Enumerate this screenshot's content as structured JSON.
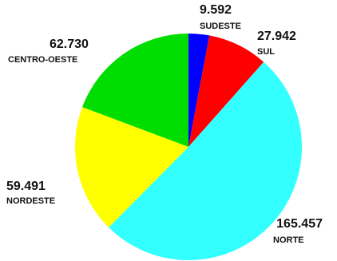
{
  "chart_data": {
    "type": "pie",
    "categories": [
      "SUDESTE",
      "SUL",
      "NORTE",
      "NORDESTE",
      "CENTRO-OESTE"
    ],
    "values": [
      9592,
      27942,
      165457,
      59491,
      62730
    ],
    "value_labels": [
      "9.592",
      "27.942",
      "165.457",
      "59.491",
      "62.730"
    ],
    "colors": [
      "#0000ff",
      "#ff0000",
      "#33ffff",
      "#ffff00",
      "#00dd00"
    ]
  }
}
